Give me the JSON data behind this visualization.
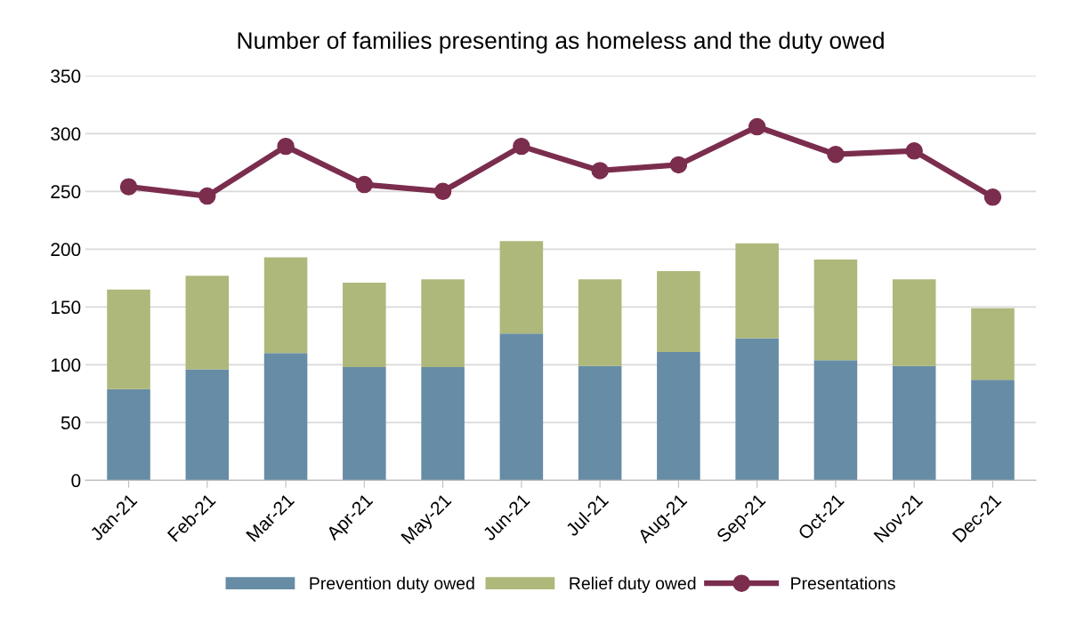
{
  "chart_data": {
    "type": "bar",
    "stacked": true,
    "title": "Number of families presenting as homeless and the duty owed",
    "categories": [
      "Jan-21",
      "Feb-21",
      "Mar-21",
      "Apr-21",
      "May-21",
      "Jun-21",
      "Jul-21",
      "Aug-21",
      "Sep-21",
      "Oct-21",
      "Nov-21",
      "Dec-21"
    ],
    "series": [
      {
        "name": "Prevention duty owed",
        "color": "#678ca5",
        "values": [
          79,
          96,
          110,
          98,
          98,
          127,
          99,
          111,
          123,
          104,
          99,
          87
        ]
      },
      {
        "name": "Relief duty owed",
        "color": "#adb87a",
        "values": [
          86,
          81,
          83,
          73,
          76,
          80,
          75,
          70,
          82,
          87,
          75,
          62
        ]
      },
      {
        "name": "Presentations",
        "type": "line",
        "color": "#7b2d4e",
        "marker": "circle",
        "values": [
          254,
          246,
          289,
          256,
          250,
          289,
          268,
          273,
          306,
          282,
          285,
          245
        ]
      }
    ],
    "ylim": [
      0,
      350
    ],
    "yticks": [
      0,
      50,
      100,
      150,
      200,
      250,
      300,
      350
    ],
    "grid": "y",
    "legend": "bottom"
  }
}
